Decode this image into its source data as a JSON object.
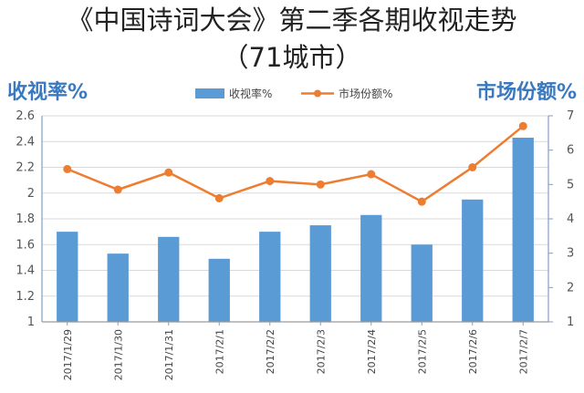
{
  "title_line1": "《中国诗词大会》第二季各期收视走势",
  "title_line2": "（71城市）",
  "chart_data": {
    "type": "bar",
    "categories": [
      "2017/1/29",
      "2017/1/30",
      "2017/1/31",
      "2017/2/1",
      "2017/2/2",
      "2017/2/3",
      "2017/2/4",
      "2017/2/5",
      "2017/2/6",
      "2017/2/7"
    ],
    "series": [
      {
        "name": "收视率%",
        "type": "bar",
        "axis": "left",
        "values": [
          1.7,
          1.53,
          1.66,
          1.49,
          1.7,
          1.75,
          1.83,
          1.6,
          1.95,
          2.43
        ]
      },
      {
        "name": "市场份额%",
        "type": "line",
        "axis": "right",
        "values": [
          5.45,
          4.85,
          5.35,
          4.6,
          5.1,
          5.0,
          5.3,
          4.5,
          5.5,
          6.7
        ]
      }
    ],
    "y_left": {
      "label": "收视率%",
      "min": 1,
      "max": 2.6,
      "ticks": [
        "1",
        "1.2",
        "1.4",
        "1.6",
        "1.8",
        "2",
        "2.2",
        "2.4",
        "2.6"
      ]
    },
    "y_right": {
      "label": "市场份额%",
      "min": 1,
      "max": 7,
      "ticks": [
        "1",
        "2",
        "3",
        "4",
        "5",
        "6",
        "7"
      ]
    },
    "grid": true,
    "legend": "top-center",
    "colors": {
      "bar": "#5b9bd5",
      "line": "#ed7d31",
      "axis_title": "#3a79c0"
    }
  }
}
